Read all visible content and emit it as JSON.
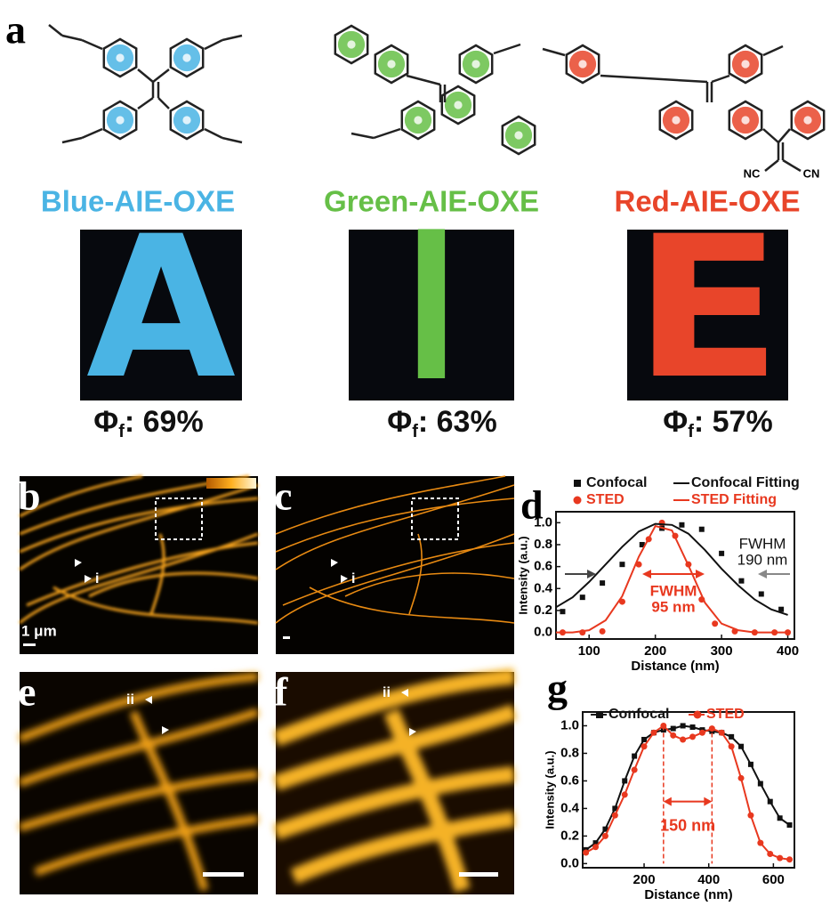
{
  "panels": {
    "a": "a",
    "b": "b",
    "c": "c",
    "e": "e",
    "f": "f"
  },
  "compounds": [
    {
      "name": "Blue-AIE-OXE",
      "color": "#4ab4e4",
      "photo_letter": "A",
      "phi": "Φ",
      "sub": "f",
      "yield": ": 69%",
      "groups": []
    },
    {
      "name": "Green-AIE-OXE",
      "color": "#66bf47",
      "photo_letter": "I",
      "phi": "Φ",
      "sub": "f",
      "yield": ": 63%",
      "groups": []
    },
    {
      "name": "Red-AIE-OXE",
      "color": "#e8452a",
      "photo_letter": "E",
      "phi": "Φ",
      "sub": "f",
      "yield": ": 57%",
      "groups": [
        "NC",
        "CN"
      ]
    }
  ],
  "images": {
    "scale_bar": "1 μm",
    "marker_i": "i",
    "marker_ii": "ii"
  },
  "chart_data": [
    {
      "type": "line",
      "panel": "d",
      "xlabel": "Distance (nm)",
      "ylabel": "Intensity (a.u.)",
      "xlim": [
        50,
        410
      ],
      "xticks": [
        100,
        200,
        300,
        400
      ],
      "ylim": [
        -0.06,
        1.1
      ],
      "yticks": [
        {
          "value": 0,
          "label": "0.0"
        },
        {
          "value": 0.2,
          "label": "0.2"
        },
        {
          "value": 0.4,
          "label": "0.4"
        },
        {
          "value": 0.6,
          "label": "0.6"
        },
        {
          "value": 0.8,
          "label": "0.8"
        },
        {
          "value": 1,
          "label": "1.0"
        }
      ],
      "series": [
        {
          "name": "Confocal",
          "color": "#111111",
          "marker": "square",
          "line": false,
          "x": [
            60,
            90,
            120,
            150,
            180,
            210,
            240,
            270,
            300,
            330,
            360,
            390
          ],
          "values": [
            0.19,
            0.32,
            0.45,
            0.62,
            0.8,
            0.95,
            0.98,
            0.94,
            0.72,
            0.47,
            0.35,
            0.21
          ]
        },
        {
          "name": "STED",
          "color": "#e8381f",
          "marker": "circle",
          "line": false,
          "x": [
            60,
            90,
            120,
            150,
            175,
            190,
            210,
            230,
            250,
            270,
            290,
            320,
            350,
            380,
            400
          ],
          "values": [
            0,
            0,
            0.01,
            0.28,
            0.62,
            0.85,
            1.0,
            0.88,
            0.62,
            0.3,
            0.08,
            0.01,
            0,
            0,
            0
          ]
        },
        {
          "name": "Confocal Fitting",
          "color": "#111111",
          "marker": "none",
          "line": true,
          "x": [
            50,
            75,
            100,
            125,
            150,
            175,
            200,
            225,
            250,
            275,
            300,
            325,
            350,
            375,
            400
          ],
          "values": [
            0.23,
            0.32,
            0.46,
            0.62,
            0.78,
            0.92,
            0.99,
            0.98,
            0.9,
            0.75,
            0.58,
            0.43,
            0.3,
            0.21,
            0.16
          ]
        },
        {
          "name": "STED Fitting",
          "color": "#e8381f",
          "marker": "none",
          "line": true,
          "x": [
            50,
            75,
            100,
            125,
            150,
            175,
            200,
            225,
            250,
            275,
            300,
            325,
            350,
            375,
            400
          ],
          "values": [
            0,
            0,
            0.02,
            0.11,
            0.33,
            0.69,
            0.97,
            0.93,
            0.61,
            0.27,
            0.08,
            0.02,
            0,
            0,
            0
          ]
        }
      ],
      "annotations": [
        {
          "lines": [
            "FWHM",
            "190 nm"
          ],
          "color": "#111111"
        },
        {
          "lines": [
            "FWHM",
            "95 nm"
          ],
          "color": "#e8381f"
        }
      ]
    },
    {
      "type": "line",
      "panel": "g",
      "xlabel": "Distance (nm)",
      "ylabel": "Intensity (a.u.)",
      "xlim": [
        10,
        665
      ],
      "xticks": [
        200,
        400,
        600
      ],
      "ylim": [
        -0.03,
        1.1
      ],
      "yticks": [
        {
          "value": 0,
          "label": "0.0"
        },
        {
          "value": 0.2,
          "label": "0.2"
        },
        {
          "value": 0.4,
          "label": "0.4"
        },
        {
          "value": 0.6,
          "label": "0.6"
        },
        {
          "value": 0.8,
          "label": "0.8"
        },
        {
          "value": 1,
          "label": "1.0"
        }
      ],
      "x": [
        20,
        50,
        80,
        110,
        140,
        170,
        200,
        230,
        260,
        290,
        320,
        350,
        380,
        410,
        440,
        470,
        500,
        530,
        560,
        590,
        620,
        650
      ],
      "series": [
        {
          "name": "Confocal",
          "color": "#111111",
          "marker": "square",
          "line": true,
          "values": [
            0.1,
            0.15,
            0.25,
            0.4,
            0.6,
            0.78,
            0.9,
            0.95,
            0.97,
            0.98,
            1.0,
            0.99,
            0.97,
            0.96,
            0.95,
            0.92,
            0.85,
            0.72,
            0.58,
            0.45,
            0.33,
            0.28
          ]
        },
        {
          "name": "STED",
          "color": "#e8381f",
          "marker": "circle",
          "line": true,
          "values": [
            0.08,
            0.12,
            0.2,
            0.35,
            0.5,
            0.68,
            0.85,
            0.95,
            1.0,
            0.93,
            0.9,
            0.92,
            0.95,
            0.98,
            0.95,
            0.85,
            0.62,
            0.35,
            0.15,
            0.07,
            0.04,
            0.03
          ]
        }
      ],
      "annotations": [
        {
          "lines": [
            "150 nm"
          ],
          "color": "#e8381f",
          "span": [
            260,
            410
          ]
        }
      ]
    }
  ]
}
